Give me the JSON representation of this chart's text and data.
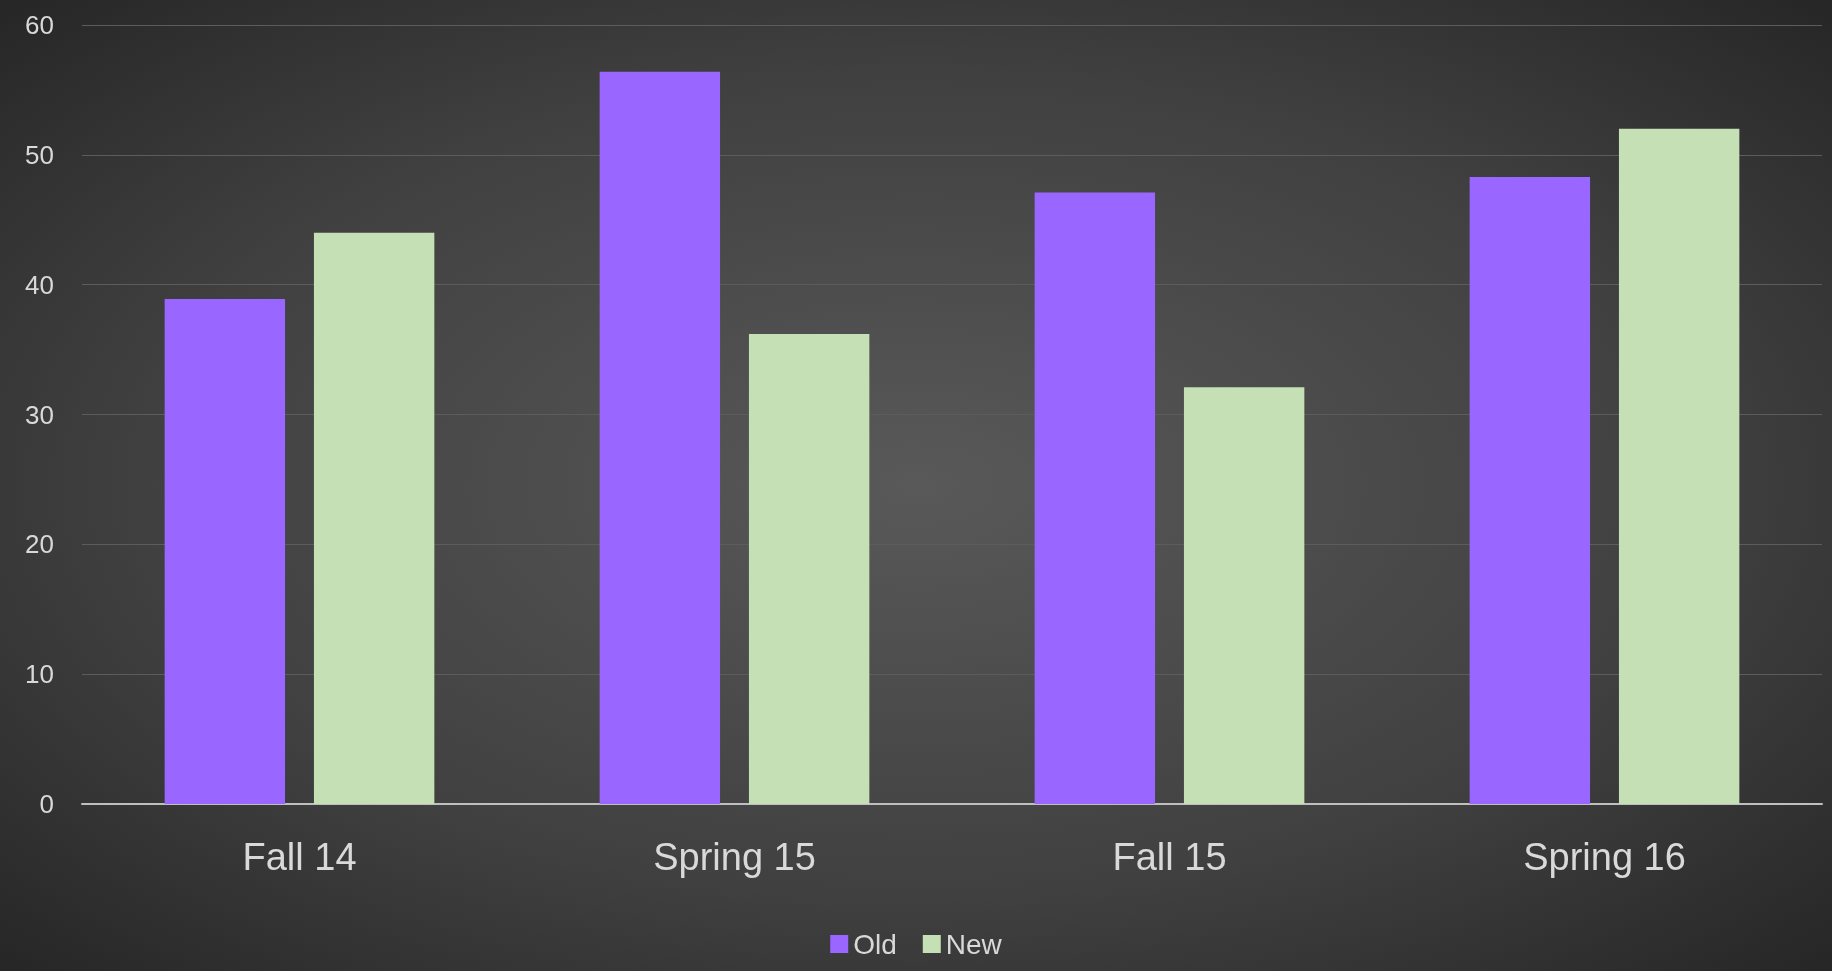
{
  "chart_data": {
    "type": "bar",
    "categories": [
      "Fall 14",
      "Spring 15",
      "Fall 15",
      "Spring 16"
    ],
    "series": [
      {
        "name": "Old",
        "color": "#9966ff",
        "values": [
          38.9,
          56.4,
          47.1,
          48.3
        ]
      },
      {
        "name": "New",
        "color": "#c5e0b4",
        "values": [
          44,
          36.2,
          32.1,
          52
        ]
      }
    ],
    "ylim": [
      0,
      60
    ],
    "yticks": [
      0,
      10,
      20,
      30,
      40,
      50,
      60
    ],
    "grid": "y",
    "legend": "bottom"
  }
}
